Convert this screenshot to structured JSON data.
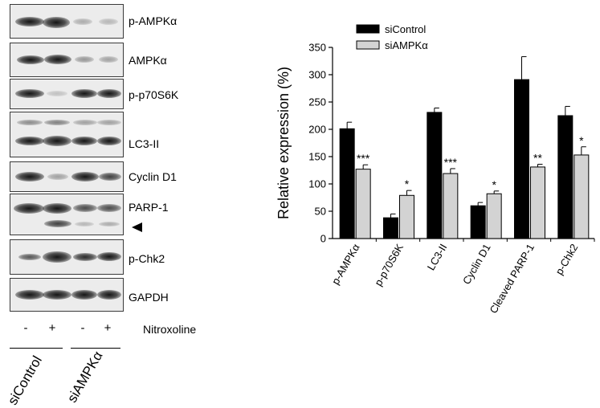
{
  "blots": [
    {
      "label": "p-AMPKα"
    },
    {
      "label": "AMPKα"
    },
    {
      "label": "p-p70S6K"
    },
    {
      "label": "LC3-II"
    },
    {
      "label": "Cyclin D1"
    },
    {
      "label": "PARP-1"
    },
    {
      "label": "p-Chk2"
    },
    {
      "label": "GAPDH"
    }
  ],
  "treatment_row": {
    "signs": [
      "-",
      "+",
      "-",
      "+"
    ],
    "label": "Nitroxoline"
  },
  "groups": [
    {
      "label": "siControl"
    },
    {
      "label": "siAMPKα"
    }
  ],
  "chart_data": {
    "type": "bar",
    "categories": [
      "p-AMPKα",
      "p-p70S6K",
      "LC3-II",
      "Cyclin D1",
      "Cleaved PARP-1",
      "p-Chk2"
    ],
    "series": [
      {
        "name": "siControl",
        "color": "#000000",
        "values": [
          201,
          38,
          231,
          60,
          291,
          225
        ],
        "errors": [
          12,
          7,
          8,
          6,
          42,
          17
        ]
      },
      {
        "name": "siAMPKα",
        "color": "#d3d3d3",
        "values": [
          127,
          79,
          119,
          82,
          131,
          153
        ],
        "errors": [
          8,
          9,
          9,
          5,
          5,
          15
        ]
      }
    ],
    "significance": [
      "***",
      "*",
      "***",
      "*",
      "**",
      "*"
    ],
    "ylabel": "Relative expression (%)",
    "xlabel": "",
    "ylim": [
      0,
      350
    ],
    "yticks": [
      0,
      50,
      100,
      150,
      200,
      250,
      300,
      350
    ],
    "legend_position": "top-left"
  }
}
